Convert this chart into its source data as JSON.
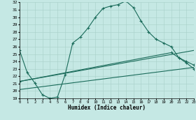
{
  "xlabel": "Humidex (Indice chaleur)",
  "bg_color": "#c5e8e4",
  "line_color": "#1a6b5a",
  "grid_color": "#a8cfc8",
  "xlim": [
    0,
    23
  ],
  "ylim": [
    19,
    32
  ],
  "xticks": [
    0,
    1,
    2,
    3,
    4,
    5,
    6,
    7,
    8,
    9,
    10,
    11,
    12,
    13,
    14,
    15,
    16,
    17,
    18,
    19,
    20,
    21,
    22,
    23
  ],
  "yticks": [
    19,
    20,
    21,
    22,
    23,
    24,
    25,
    26,
    27,
    28,
    29,
    30,
    31,
    32
  ],
  "line1_x": [
    0,
    1,
    2,
    3,
    4,
    5,
    6,
    7,
    8,
    9,
    10,
    11,
    12,
    13,
    14,
    15,
    16,
    17,
    18,
    19,
    20,
    21,
    22,
    23
  ],
  "line1_y": [
    25.5,
    22.5,
    21.1,
    19.5,
    19.0,
    19.2,
    22.2,
    26.5,
    27.3,
    28.5,
    30.0,
    31.2,
    31.5,
    31.7,
    32.2,
    31.3,
    29.5,
    28.0,
    27.0,
    26.5,
    26.0,
    24.5,
    23.8,
    23.0
  ],
  "line2_x": [
    0,
    23
  ],
  "line2_y": [
    21.3,
    25.5
  ],
  "line3_x": [
    0,
    23
  ],
  "line3_y": [
    20.2,
    23.2
  ],
  "line4_x": [
    0,
    20,
    21,
    22,
    23
  ],
  "line4_y": [
    21.3,
    25.2,
    24.5,
    24.0,
    23.5
  ]
}
